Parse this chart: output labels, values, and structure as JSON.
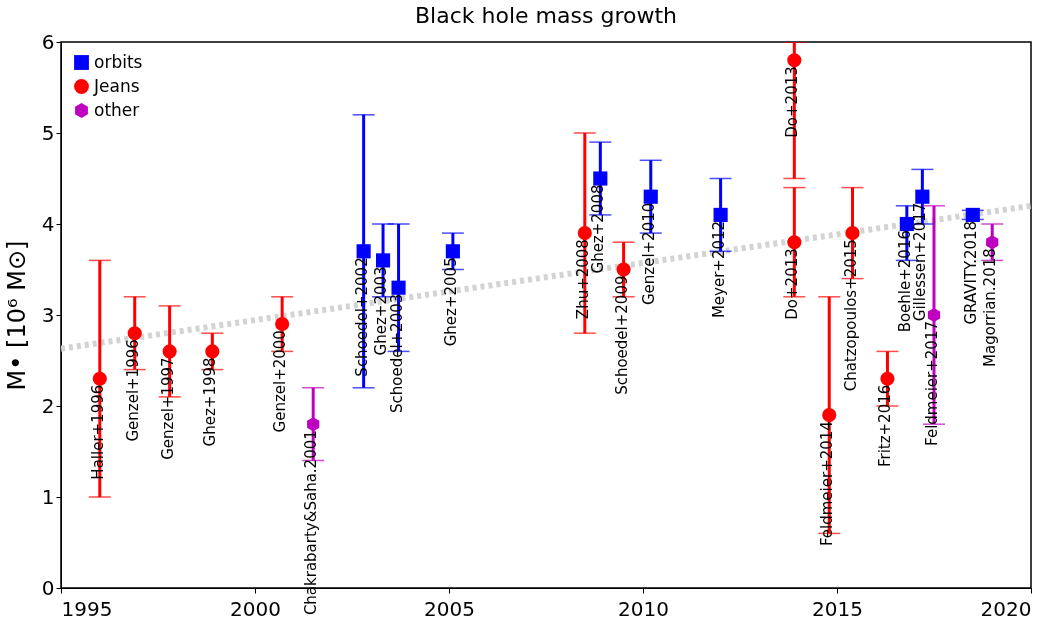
{
  "chart_data": {
    "type": "scatter",
    "title": "Black hole mass growth",
    "ylabel": "M• [10⁶ M⊙]",
    "xlim": [
      1995,
      2020
    ],
    "xticks": [
      1995,
      2000,
      2005,
      2010,
      2015,
      2020
    ],
    "ylim": [
      0,
      6
    ],
    "yticks": [
      0,
      1,
      2,
      3,
      4,
      5,
      6
    ],
    "grid": false,
    "legend": "top left",
    "series": [
      {
        "name": "orbits",
        "color": "#0000ff",
        "marker": "square",
        "x": [
          2002.8,
          2003.3,
          2003.7,
          2005.1,
          2008.9,
          2010.2,
          2012.0,
          2016.8,
          2017.2,
          2018.5
        ],
        "values": [
          3.7,
          3.6,
          3.3,
          3.7,
          4.5,
          4.3,
          4.1,
          4.0,
          4.3,
          4.1
        ],
        "errors": [
          [
            2.2,
            5.2
          ],
          [
            3.2,
            4.0
          ],
          [
            2.6,
            4.0
          ],
          [
            3.5,
            3.9
          ],
          [
            4.1,
            4.9
          ],
          [
            3.9,
            4.7
          ],
          [
            3.7,
            4.5
          ],
          [
            3.6,
            4.2
          ],
          [
            4.0,
            4.6
          ],
          [
            4.05,
            4.15
          ]
        ]
      },
      {
        "name": "Jeans",
        "color": "#ff0000",
        "marker": "circle",
        "x": [
          1996.0,
          1996.9,
          1997.8,
          1998.9,
          2000.7,
          2008.5,
          2009.5,
          2013.9,
          2013.9,
          2014.8,
          2015.4,
          2016.3
        ],
        "values": [
          2.3,
          2.8,
          2.6,
          2.6,
          2.9,
          3.9,
          3.5,
          5.8,
          3.8,
          1.9,
          3.9,
          2.3
        ],
        "errors": [
          [
            1.0,
            3.6
          ],
          [
            2.4,
            3.2
          ],
          [
            2.1,
            3.1
          ],
          [
            2.4,
            2.8
          ],
          [
            2.6,
            3.2
          ],
          [
            2.8,
            5.0
          ],
          [
            3.2,
            3.8
          ],
          [
            4.5,
            6.0
          ],
          [
            3.2,
            4.4
          ],
          [
            0.6,
            3.2
          ],
          [
            3.4,
            4.4
          ],
          [
            2.0,
            2.6
          ]
        ]
      },
      {
        "name": "other",
        "color": "#bf00bf",
        "x": [
          2001.5,
          2017.5,
          2019.0
        ],
        "values": [
          1.8,
          3.0,
          3.8
        ],
        "errors": [
          [
            1.4,
            2.2
          ],
          [
            1.8,
            4.2
          ],
          [
            3.6,
            4.0
          ]
        ]
      },
      {
        "type": "line",
        "color": "#d3d3d3",
        "line_style": "dotted",
        "x": [
          1995,
          2020
        ],
        "values": [
          2.63,
          4.2
        ]
      }
    ],
    "annotations": [
      {
        "text": "Haller+1996",
        "x": 1996.0,
        "y": 2.3
      },
      {
        "text": "Genzel+1996",
        "x": 1996.9,
        "y": 2.8
      },
      {
        "text": "Genzel+1997",
        "x": 1997.8,
        "y": 2.6
      },
      {
        "text": "Ghez+1998",
        "x": 1998.9,
        "y": 2.6
      },
      {
        "text": "Genzel+2000",
        "x": 2000.7,
        "y": 2.9
      },
      {
        "text": "Chakrabarty&Saha.2001",
        "x": 2001.5,
        "y": 1.8
      },
      {
        "text": "Schoedel+2002",
        "x": 2002.8,
        "y": 3.7
      },
      {
        "text": "Ghez+2003",
        "x": 2003.3,
        "y": 3.6
      },
      {
        "text": "Schoedel+2003",
        "x": 2003.7,
        "y": 3.3
      },
      {
        "text": "Ghez+2005",
        "x": 2005.1,
        "y": 3.7
      },
      {
        "text": "Zhu+2008",
        "x": 2008.5,
        "y": 3.9
      },
      {
        "text": "Ghez+2008",
        "x": 2008.9,
        "y": 4.5
      },
      {
        "text": "Schoedel+2009",
        "x": 2009.5,
        "y": 3.5
      },
      {
        "text": "Genzel+2010",
        "x": 2010.2,
        "y": 4.3
      },
      {
        "text": "Meyer+2012",
        "x": 2012.0,
        "y": 4.1
      },
      {
        "text": "Do+2013",
        "x": 2013.9,
        "y": 5.8
      },
      {
        "text": "Do+2013",
        "x": 2013.9,
        "y": 3.8
      },
      {
        "text": "Feldmeier+2014",
        "x": 2014.8,
        "y": 1.9
      },
      {
        "text": "Chatzopoulos+2015",
        "x": 2015.4,
        "y": 3.9
      },
      {
        "text": "Fritz+2016",
        "x": 2016.3,
        "y": 2.3
      },
      {
        "text": "Boehle+2016",
        "x": 2016.8,
        "y": 4.0
      },
      {
        "text": "Gillessen+2017",
        "x": 2017.2,
        "y": 4.3
      },
      {
        "text": "Feldmeier+2017",
        "x": 2017.5,
        "y": 3.0
      },
      {
        "text": "GRAVITY.2018",
        "x": 2018.5,
        "y": 4.1
      },
      {
        "text": "Magorrian.2018",
        "x": 2019.0,
        "y": 3.8
      }
    ]
  }
}
